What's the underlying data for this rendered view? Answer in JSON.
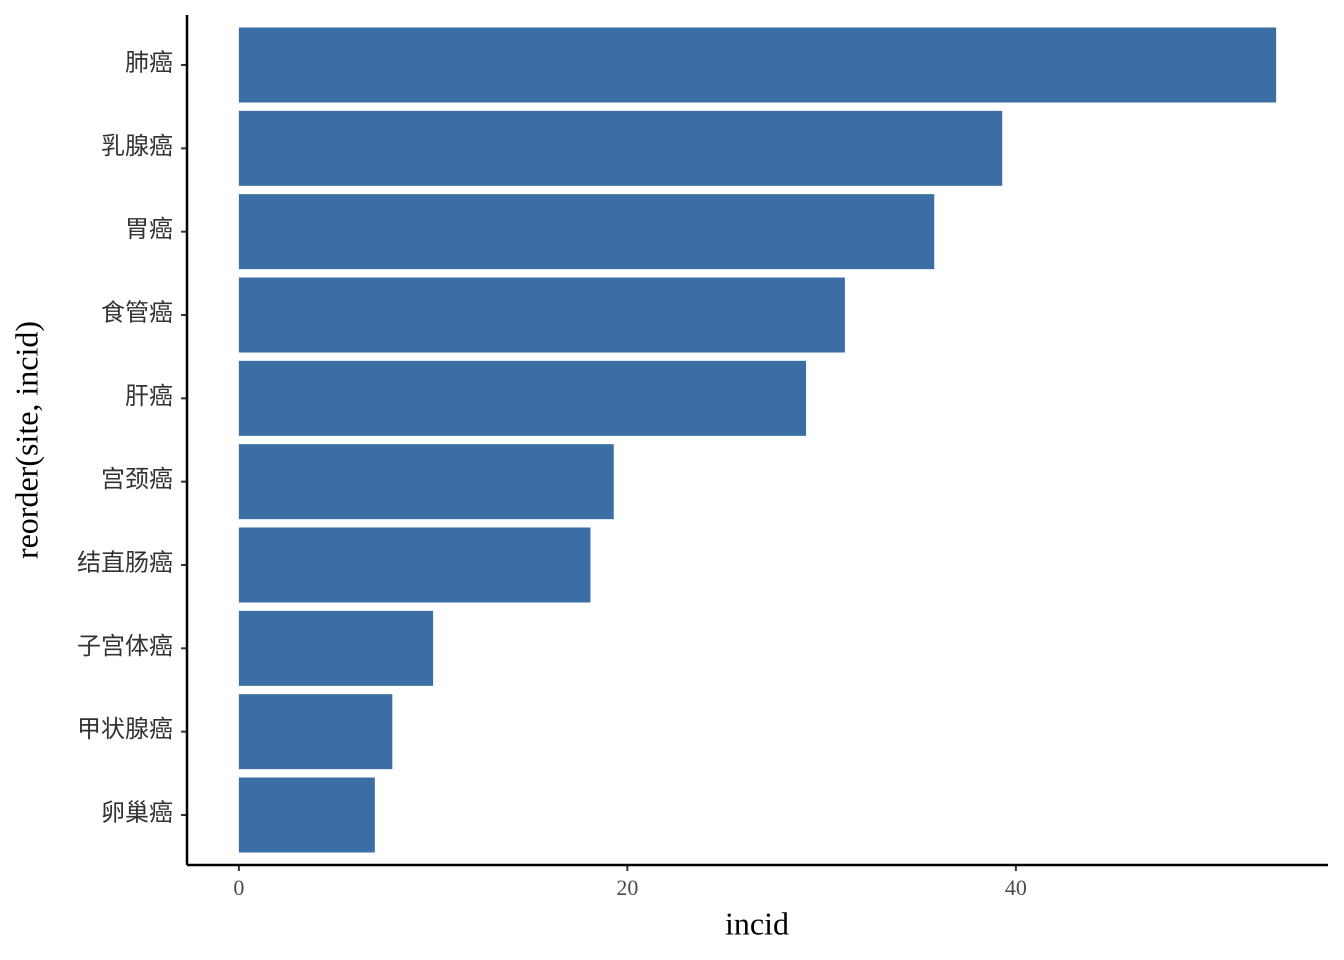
{
  "chart_data": {
    "type": "bar",
    "orientation": "horizontal",
    "x_label": "incid",
    "y_label": "reorder(site, incid)",
    "categories": [
      "肺癌",
      "乳腺癌",
      "胃癌",
      "食管癌",
      "肝癌",
      "宫颈癌",
      "结直肠癌",
      "子宫体癌",
      "甲状腺癌",
      "卵巢癌"
    ],
    "values": [
      53.4,
      39.3,
      35.8,
      31.2,
      29.2,
      19.3,
      18.1,
      10.0,
      7.9,
      7.0
    ],
    "color": "#3a6ea5",
    "xlim": [
      -2.67,
      56.07
    ],
    "xticks": [
      0,
      20,
      40
    ],
    "grid": false
  }
}
